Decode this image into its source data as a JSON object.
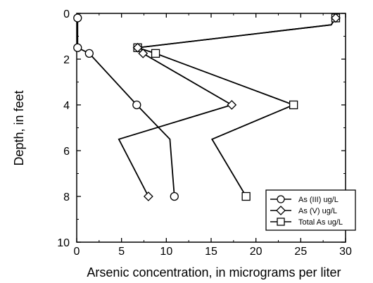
{
  "chart_data": {
    "type": "line",
    "xlabel": "Arsenic concentration, in micrograms per liter",
    "ylabel": "Depth, in feet",
    "xlim": [
      0,
      30
    ],
    "ylim": [
      0,
      10
    ],
    "y_inverted": true,
    "grid": false,
    "legend_position": "bottom-right",
    "x_ticks": [
      "0",
      "5",
      "10",
      "15",
      "20",
      "25",
      "30"
    ],
    "y_ticks": [
      "0",
      "2",
      "4",
      "6",
      "8",
      "10"
    ],
    "series": [
      {
        "name": "As (III) ug/L",
        "marker": "circle",
        "points": [
          [
            0.1,
            0.2
          ],
          [
            0.1,
            1.5
          ],
          [
            1.4,
            1.75
          ],
          [
            6.7,
            4.0
          ],
          [
            10.4,
            5.5
          ],
          [
            10.9,
            8.0
          ]
        ]
      },
      {
        "name": "As (V) ug/L",
        "marker": "diamond",
        "points": [
          [
            28.9,
            0.2
          ],
          [
            28.4,
            0.5
          ],
          [
            6.8,
            1.5
          ],
          [
            7.4,
            1.75
          ],
          [
            17.3,
            4.0
          ],
          [
            4.7,
            5.5
          ],
          [
            8.0,
            8.0
          ]
        ]
      },
      {
        "name": "Total As ug/L",
        "marker": "square",
        "points": [
          [
            28.9,
            0.2
          ],
          [
            28.4,
            0.5
          ],
          [
            6.8,
            1.5
          ],
          [
            8.8,
            1.75
          ],
          [
            24.2,
            4.0
          ],
          [
            15.1,
            5.5
          ],
          [
            18.9,
            8.0
          ]
        ]
      }
    ]
  }
}
